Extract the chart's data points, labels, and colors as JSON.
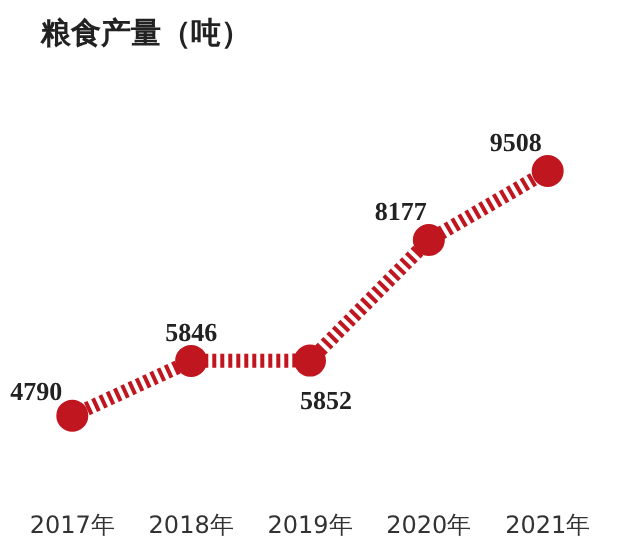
{
  "chart_data": {
    "type": "line",
    "title": "粮食产量（吨）",
    "categories": [
      "2017年",
      "2018年",
      "2019年",
      "2020年",
      "2021年"
    ],
    "series": [
      {
        "color": "#c0161f",
        "values": [
          4790,
          5846,
          5852,
          8177,
          9508
        ]
      }
    ],
    "data_labels": true,
    "marker": "circle",
    "line_style": "dashed",
    "grid": false
  }
}
